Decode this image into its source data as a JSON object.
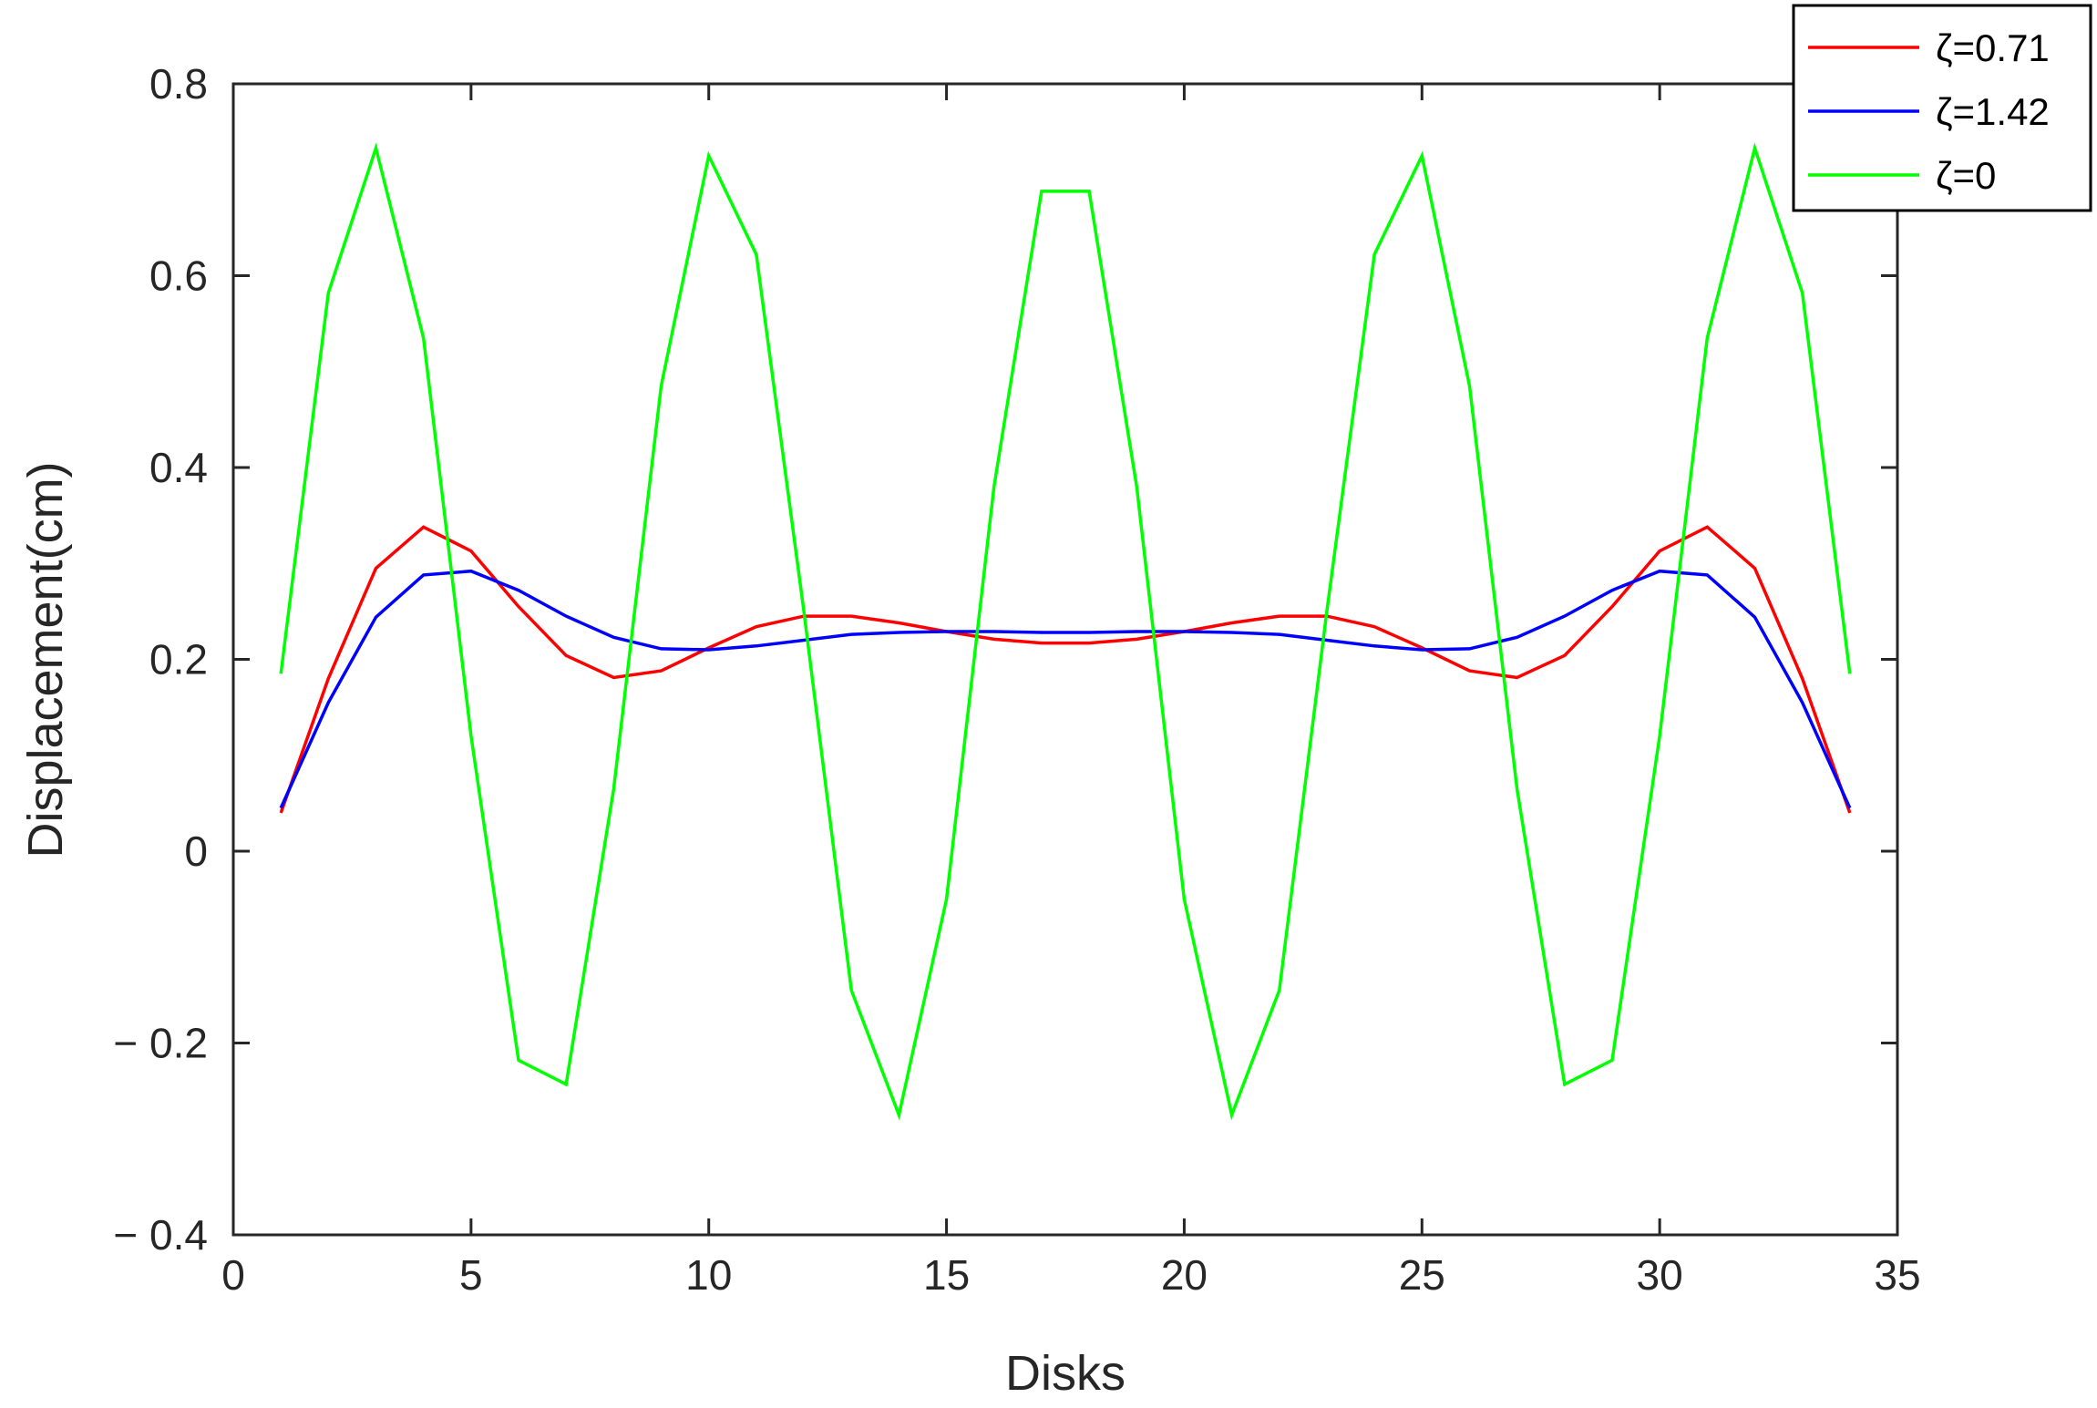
{
  "chart_data": {
    "type": "line",
    "title": "",
    "xlabel": "Disks",
    "ylabel": "Displacement(cm)",
    "xlim": [
      0,
      35
    ],
    "ylim": [
      -0.4,
      0.8
    ],
    "xticks": [
      0,
      5,
      10,
      15,
      20,
      25,
      30,
      35
    ],
    "yticks": [
      -0.4,
      -0.2,
      0,
      0.2,
      0.4,
      0.6,
      0.8
    ],
    "ytick_labels": [
      "− 0.4",
      "− 0.2",
      "0",
      "0.2",
      "0.4",
      "0.6",
      "0.8"
    ],
    "grid": false,
    "legend_position": "top-right",
    "x": [
      1,
      2,
      3,
      4,
      5,
      6,
      7,
      8,
      9,
      10,
      11,
      12,
      13,
      14,
      15,
      16,
      17,
      18,
      19,
      20,
      21,
      22,
      23,
      24,
      25,
      26,
      27,
      28,
      29,
      30,
      31,
      32,
      33,
      34
    ],
    "series": [
      {
        "name": "ζ=0.71",
        "color": "#ff0000",
        "values": [
          0.04,
          0.18,
          0.295,
          0.338,
          0.313,
          0.255,
          0.204,
          0.181,
          0.188,
          0.212,
          0.234,
          0.245,
          0.245,
          0.238,
          0.229,
          0.221,
          0.217,
          0.217,
          0.221,
          0.229,
          0.238,
          0.245,
          0.245,
          0.234,
          0.212,
          0.188,
          0.181,
          0.204,
          0.255,
          0.313,
          0.338,
          0.295,
          0.18,
          0.04
        ]
      },
      {
        "name": "ζ=1.42",
        "color": "#0000ff",
        "values": [
          0.045,
          0.155,
          0.244,
          0.288,
          0.292,
          0.272,
          0.245,
          0.223,
          0.211,
          0.21,
          0.214,
          0.22,
          0.226,
          0.228,
          0.229,
          0.229,
          0.228,
          0.228,
          0.229,
          0.229,
          0.228,
          0.226,
          0.22,
          0.214,
          0.21,
          0.211,
          0.223,
          0.245,
          0.272,
          0.292,
          0.288,
          0.244,
          0.155,
          0.045
        ]
      },
      {
        "name": "ζ=0",
        "color": "#00ff00",
        "values": [
          0.185,
          0.582,
          0.733,
          0.535,
          0.12,
          -0.218,
          -0.243,
          0.065,
          0.485,
          0.725,
          0.622,
          0.25,
          -0.145,
          -0.275,
          -0.05,
          0.38,
          0.688,
          0.688,
          0.38,
          -0.05,
          -0.275,
          -0.145,
          0.25,
          0.622,
          0.725,
          0.485,
          0.065,
          -0.243,
          -0.218,
          0.12,
          0.535,
          0.733,
          0.582,
          0.185
        ]
      }
    ]
  }
}
